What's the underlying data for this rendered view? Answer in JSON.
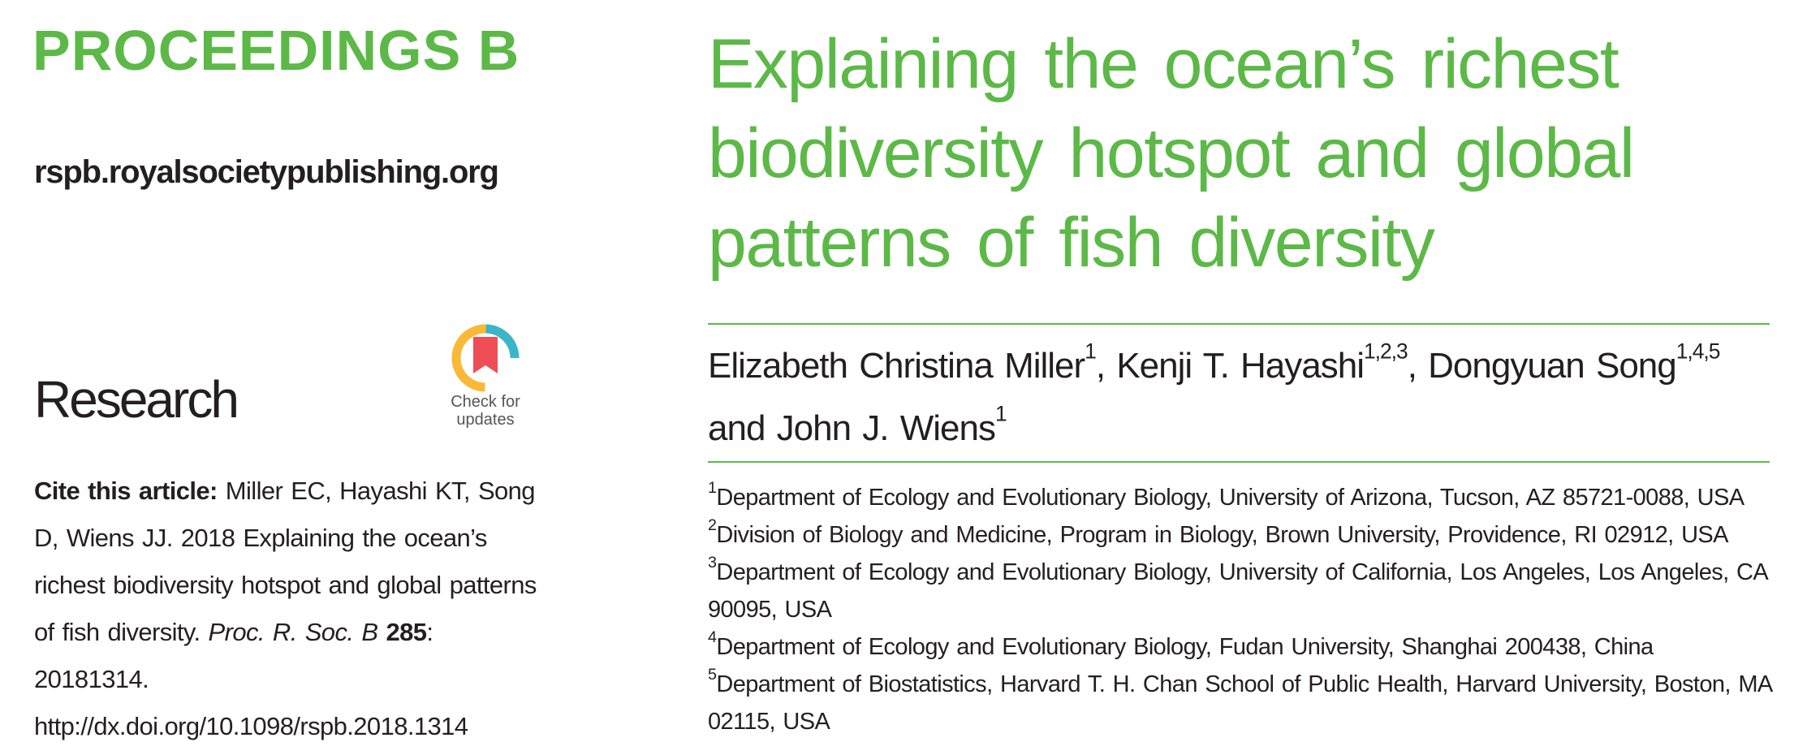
{
  "journal": {
    "name": "PROCEEDINGS B",
    "website": "rspb.royalsocietypublishing.org",
    "section": "Research",
    "badge": {
      "line1": "Check for",
      "line2": "updates",
      "icon": "crossmark-bookmark-icon",
      "colors": [
        "#f04e56",
        "#f9b937",
        "#3bb5c7"
      ]
    }
  },
  "citation": {
    "label": "Cite this article:",
    "text": "Miller EC, Hayashi KT, Song D, Wiens JJ. 2018 Explaining the ocean’s richest biodiversity hotspot and global patterns of fish diversity.",
    "journal_abbrev": "Proc. R. Soc. B",
    "volume": "285",
    "article_no": ": 20181314.",
    "doi": "http://dx.doi.org/10.1098/rspb.2018.1314"
  },
  "article": {
    "title": "Explaining the ocean’s richest biodiversity hotspot and global patterns of fish diversity",
    "authors": [
      {
        "name": "Elizabeth Christina Miller",
        "aff": "1",
        "sep": ", "
      },
      {
        "name": "Kenji T. Hayashi",
        "aff": "1,2,3",
        "sep": ", "
      },
      {
        "name": "Dongyuan Song",
        "aff": "1,4,5",
        "sep": " "
      },
      {
        "name": "and John J. Wiens",
        "aff": "1",
        "sep": ""
      }
    ],
    "affiliations": [
      {
        "num": "1",
        "text": "Department of Ecology and Evolutionary Biology, University of Arizona, Tucson, AZ 85721-0088, USA"
      },
      {
        "num": "2",
        "text": "Division of Biology and Medicine, Program in Biology, Brown University, Providence, RI 02912, USA"
      },
      {
        "num": "3",
        "text": "Department of Ecology and Evolutionary Biology, University of California, Los Angeles, Los Angeles, CA 90095, USA"
      },
      {
        "num": "4",
        "text": "Department of Ecology and Evolutionary Biology, Fudan University, Shanghai 200438, China"
      },
      {
        "num": "5",
        "text": "Department of Biostatistics, Harvard T. H. Chan School of Public Health, Harvard University, Boston, MA 02115, USA"
      }
    ]
  },
  "colors": {
    "accent": "#5cb947",
    "text": "#231f20"
  }
}
